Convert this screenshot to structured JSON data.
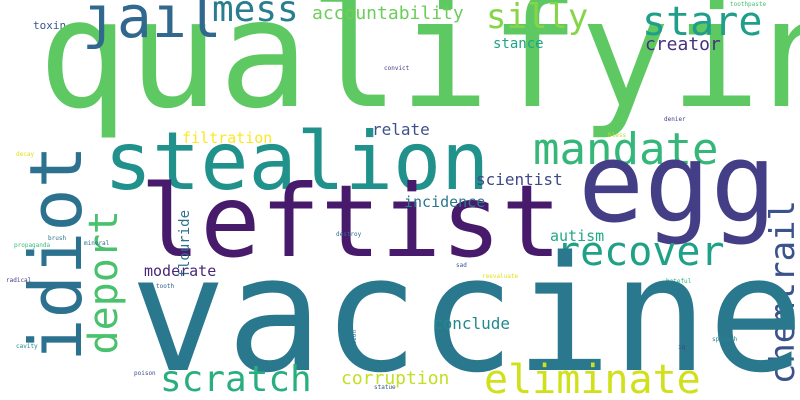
{
  "words": {
    "vaccine": "vaccine",
    "qualifying": "qualifying",
    "leftist": "leftist",
    "egg": "egg",
    "stealion": "stealion",
    "idiot": "idiot",
    "jail": "jail",
    "mandate": "mandate",
    "recover": "recover",
    "eliminate": "eliminate",
    "scratch": "scratch",
    "stare": "stare",
    "silly": "silly",
    "mess": "mess",
    "deport": "deport",
    "chemtrail": "chemtrail",
    "accountability": "accountability",
    "creator": "creator",
    "stance": "stance",
    "relate": "relate",
    "scientist": "scientist",
    "incidence": "incidence",
    "autism": "autism",
    "moderate": "moderate",
    "conclude": "conclude",
    "corruption": "corruption",
    "filtration": "filtration",
    "flouride": "flouride",
    "toxin": "toxin",
    "toothpaste": "toothpaste",
    "convict": "convict",
    "denier": "denier",
    "bless": "bless",
    "decay": "decay",
    "mineral": "mineral",
    "brush": "brush",
    "destroy": "destroy",
    "propaganda": "propaganda",
    "sad": "sad",
    "reevaluate": "reevaluate",
    "radical": "radical",
    "tooth": "tooth",
    "hateful": "hateful",
    "lion": "lion",
    "cavity": "cavity",
    "iq": "iq",
    "spinach": "spinach",
    "poison": "poison",
    "statue": "statue"
  },
  "colors": {
    "background": "#ffffff",
    "palette": [
      "#440154",
      "#481a6c",
      "#3b528b",
      "#2a788e",
      "#21918c",
      "#35b779",
      "#5ec962",
      "#fde725"
    ]
  }
}
